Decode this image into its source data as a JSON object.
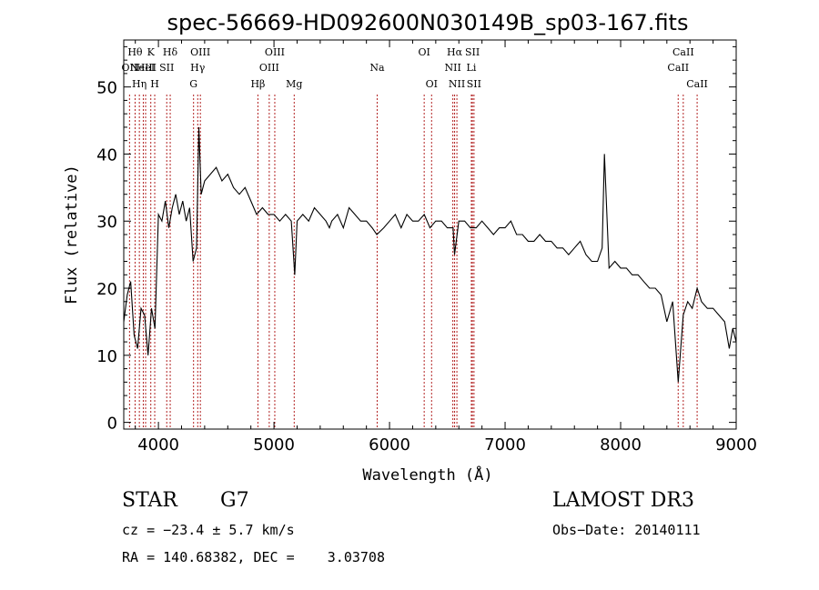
{
  "chart_data": {
    "type": "line",
    "title": "spec-56669-HD092600N030149B_sp03-167.fits",
    "xlabel": "Wavelength (Å)",
    "ylabel": "Flux (relative)",
    "xlim": [
      3700,
      9000
    ],
    "ylim": [
      -1,
      57
    ],
    "xticks": [
      4000,
      5000,
      6000,
      7000,
      8000,
      9000
    ],
    "yticks": [
      0,
      10,
      20,
      30,
      40,
      50
    ],
    "grid": false,
    "series": [
      {
        "x": [
          3700,
          3730,
          3760,
          3790,
          3820,
          3850,
          3880,
          3910,
          3940,
          3970,
          4000,
          4030,
          4060,
          4090,
          4120,
          4150,
          4180,
          4210,
          4240,
          4270,
          4300,
          4330,
          4350,
          4370,
          4400,
          4450,
          4500,
          4550,
          4600,
          4650,
          4700,
          4750,
          4800,
          4850,
          4900,
          4950,
          5000,
          5050,
          5100,
          5150,
          5180,
          5200,
          5250,
          5300,
          5350,
          5400,
          5450,
          5480,
          5500,
          5550,
          5600,
          5650,
          5700,
          5750,
          5800,
          5850,
          5890,
          5950,
          6000,
          6050,
          6100,
          6150,
          6200,
          6250,
          6300,
          6350,
          6400,
          6450,
          6500,
          6550,
          6563,
          6600,
          6650,
          6700,
          6750,
          6800,
          6850,
          6900,
          6950,
          7000,
          7050,
          7100,
          7150,
          7200,
          7250,
          7300,
          7350,
          7400,
          7450,
          7500,
          7550,
          7600,
          7650,
          7700,
          7750,
          7800,
          7840,
          7860,
          7900,
          7950,
          8000,
          8050,
          8100,
          8150,
          8200,
          8250,
          8300,
          8350,
          8400,
          8450,
          8498,
          8542,
          8580,
          8620,
          8662,
          8700,
          8750,
          8800,
          8850,
          8900,
          8940,
          8970,
          9000
        ],
        "y": [
          15,
          19,
          21,
          13,
          11,
          17,
          16,
          10,
          17,
          14,
          31,
          30,
          33,
          29,
          32,
          34,
          31,
          33,
          30,
          32,
          24,
          26,
          44,
          34,
          36,
          37,
          38,
          36,
          37,
          35,
          34,
          35,
          33,
          31,
          32,
          31,
          31,
          30,
          31,
          30,
          22,
          30,
          31,
          30,
          32,
          31,
          30,
          29,
          30,
          31,
          29,
          32,
          31,
          30,
          30,
          29,
          28,
          29,
          30,
          31,
          29,
          31,
          30,
          30,
          31,
          29,
          30,
          30,
          29,
          29,
          25,
          30,
          30,
          29,
          29,
          30,
          29,
          28,
          29,
          29,
          30,
          28,
          28,
          27,
          27,
          28,
          27,
          27,
          26,
          26,
          25,
          26,
          27,
          25,
          24,
          24,
          26,
          40,
          23,
          24,
          23,
          23,
          22,
          22,
          21,
          20,
          20,
          19,
          15,
          18,
          6,
          16,
          18,
          17,
          20,
          18,
          17,
          17,
          16,
          15,
          11,
          14,
          12
        ]
      }
    ],
    "lines": [
      {
        "x": 3750,
        "label": "OII",
        "row": 1
      },
      {
        "x": 3798,
        "label": "Hθ",
        "row": 0
      },
      {
        "x": 3835,
        "label": "Hη",
        "row": 2
      },
      {
        "x": 3869,
        "label": "NeIII",
        "row": 1
      },
      {
        "x": 3889,
        "label": "HeI",
        "row": 1
      },
      {
        "x": 3934,
        "label": "K",
        "row": 0
      },
      {
        "x": 3968,
        "label": "H",
        "row": 2
      },
      {
        "x": 4072,
        "label": "SII",
        "row": 1
      },
      {
        "x": 4102,
        "label": "Hδ",
        "row": 0
      },
      {
        "x": 4304,
        "label": "G",
        "row": 2
      },
      {
        "x": 4340,
        "label": "Hγ",
        "row": 1
      },
      {
        "x": 4363,
        "label": "OIII",
        "row": 0
      },
      {
        "x": 4861,
        "label": "Hβ",
        "row": 2
      },
      {
        "x": 4959,
        "label": "OIII",
        "row": 1
      },
      {
        "x": 5007,
        "label": "OIII",
        "row": 0
      },
      {
        "x": 5175,
        "label": "Mg",
        "row": 2
      },
      {
        "x": 5893,
        "label": "Na",
        "row": 1
      },
      {
        "x": 6300,
        "label": "OI",
        "row": 0
      },
      {
        "x": 6364,
        "label": "OI",
        "row": 2
      },
      {
        "x": 6548,
        "label": "NII",
        "row": 1
      },
      {
        "x": 6563,
        "label": "Hα",
        "row": 0
      },
      {
        "x": 6583,
        "label": "NII",
        "row": 2
      },
      {
        "x": 6708,
        "label": "Li",
        "row": 1
      },
      {
        "x": 6717,
        "label": "SII",
        "row": 0
      },
      {
        "x": 6731,
        "label": "SII",
        "row": 2
      },
      {
        "x": 8498,
        "label": "CaII",
        "row": 1
      },
      {
        "x": 8542,
        "label": "CaII",
        "row": 0
      },
      {
        "x": 8662,
        "label": "CaII",
        "row": 2
      }
    ]
  },
  "info": {
    "class_label": "STAR",
    "subclass": "G7",
    "survey": "LAMOST DR3",
    "cz": "cz = −23.4 ± 5.7 km/s",
    "obs_date": "Obs−Date: 20140111",
    "coords": "RA = 140.68382, DEC =    3.03708"
  },
  "colors": {
    "spectrum": "#000000",
    "line_markers": "#b22222"
  }
}
